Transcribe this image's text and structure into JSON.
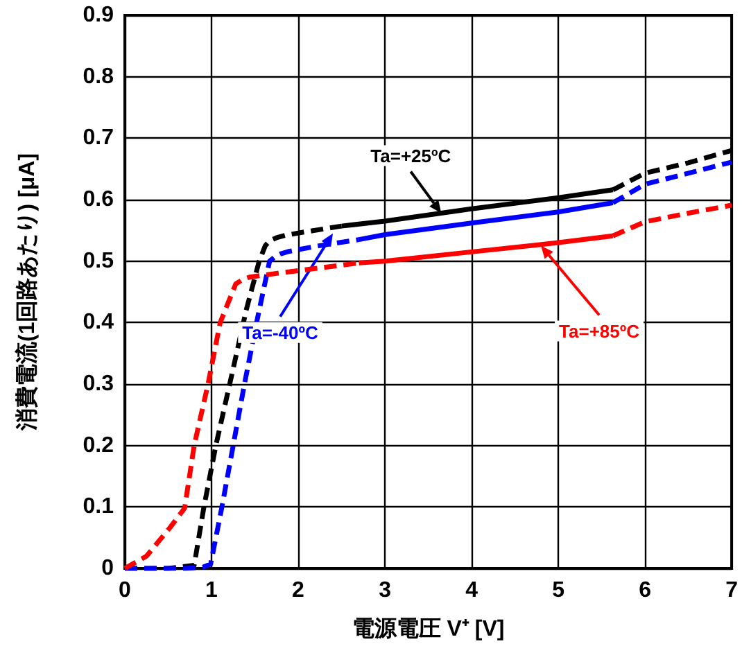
{
  "chart_data": {
    "type": "line",
    "xlabel": "電源電圧 V⁺ [V]",
    "ylabel": "消費電流(1回路あたり) [μA]",
    "xlim": [
      0,
      7
    ],
    "xticks": [
      0,
      1,
      2,
      3,
      4,
      5,
      6,
      7
    ],
    "ylim": [
      0,
      0.9
    ],
    "yticks": [
      0,
      0.1,
      0.2,
      0.3,
      0.4,
      0.5,
      0.6,
      0.7,
      0.8,
      0.9
    ],
    "grid": true,
    "marker": "none",
    "series": [
      {
        "color": "#000000",
        "line_style": "dashed",
        "x": [
          0,
          0.5,
          0.8,
          0.91,
          1.05,
          1.21,
          1.4,
          1.55,
          1.62,
          1.67,
          1.75,
          1.85,
          2.1,
          2.5
        ],
        "values": [
          0,
          0,
          0.005,
          0.098,
          0.2,
          0.3,
          0.42,
          0.5,
          0.525,
          0.533,
          0.538,
          0.542,
          0.548,
          0.557
        ]
      },
      {
        "color": "#000000",
        "line_style": "solid",
        "x": [
          2.5,
          3,
          4,
          5,
          5.63
        ],
        "values": [
          0.557,
          0.565,
          0.585,
          0.603,
          0.616
        ]
      },
      {
        "color": "#000000",
        "line_style": "dashed",
        "x": [
          5.63,
          6,
          6.5,
          7
        ],
        "values": [
          0.616,
          0.643,
          0.66,
          0.68
        ]
      },
      {
        "color": "#0000ff",
        "line_style": "dashed",
        "x": [
          0,
          0.7,
          0.9,
          0.99,
          1.12,
          1.25,
          1.38,
          1.52,
          1.67,
          1.74,
          1.8,
          1.9,
          2.2,
          2.7
        ],
        "values": [
          0,
          0,
          0.002,
          0.007,
          0.1,
          0.2,
          0.3,
          0.4,
          0.5,
          0.508,
          0.512,
          0.516,
          0.524,
          0.535
        ]
      },
      {
        "color": "#0000ff",
        "line_style": "solid",
        "x": [
          2.7,
          3,
          4,
          5,
          5.63
        ],
        "values": [
          0.535,
          0.543,
          0.562,
          0.58,
          0.595
        ]
      },
      {
        "color": "#0000ff",
        "line_style": "dashed",
        "x": [
          5.63,
          6,
          6.5,
          7
        ],
        "values": [
          0.595,
          0.625,
          0.643,
          0.661
        ]
      },
      {
        "color": "#ff0000",
        "line_style": "dashed",
        "x": [
          0,
          0.25,
          0.53,
          0.69,
          0.8,
          0.96,
          1.1,
          1.28,
          1.36,
          1.44,
          1.6,
          1.75,
          2.2,
          2.7
        ],
        "values": [
          0,
          0.02,
          0.068,
          0.098,
          0.2,
          0.3,
          0.4,
          0.463,
          0.47,
          0.474,
          0.477,
          0.48,
          0.488,
          0.497
        ]
      },
      {
        "color": "#ff0000",
        "line_style": "solid",
        "x": [
          2.7,
          3,
          4,
          5,
          5.63
        ],
        "values": [
          0.497,
          0.5,
          0.515,
          0.53,
          0.541
        ]
      },
      {
        "color": "#ff0000",
        "line_style": "dashed",
        "x": [
          5.63,
          6,
          6.5,
          7
        ],
        "values": [
          0.541,
          0.564,
          0.578,
          0.591
        ]
      }
    ],
    "annotations": [
      {
        "text": "Ta=+25ºC",
        "x": 3.65,
        "y": 0.578
      },
      {
        "text": "Ta=-40ºC",
        "x": 2.4,
        "y": 0.545
      },
      {
        "text": "Ta=+85ºC",
        "x": 4.8,
        "y": 0.525
      }
    ]
  }
}
